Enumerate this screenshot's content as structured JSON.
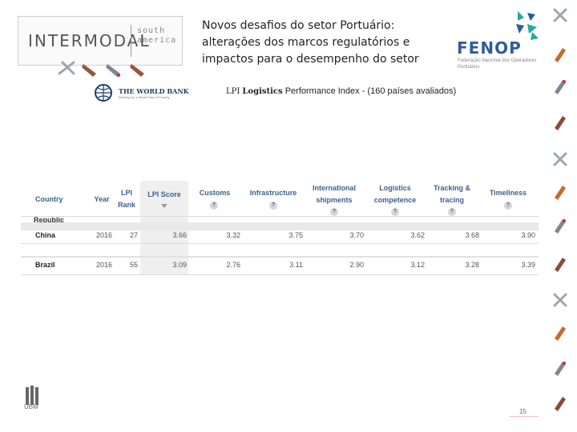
{
  "header": {
    "logo_main": "INTERMODAL",
    "logo_sub": "south america",
    "title_lines": [
      "Novos desafios do setor Portuário:",
      "alterações dos marcos regulatórios e",
      "impactos  para o desempenho do setor"
    ],
    "partner_logo": "FENOP",
    "partner_sub": "Federação Nacional dos Operadores Portuários",
    "bank_logo": "THE WORLD BANK",
    "bank_tagline": "Working for a World Free of Poverty"
  },
  "caption": {
    "lpi": "LPI",
    "logistics": "Logistics",
    "rest": "Performance Index - (160 países avaliados)"
  },
  "table": {
    "columns": [
      "Country",
      "Year",
      "LPI Rank",
      "LPI Score",
      "Customs",
      "Infrastructure",
      "International shipments",
      "Logistics competence",
      "Tracking & tracing",
      "Timeliness"
    ],
    "help_symbol": "?",
    "partial_row_label": "Republic",
    "rows": [
      [
        "China",
        "2016",
        "27",
        "3.66",
        "3.32",
        "3.75",
        "3.70",
        "3.62",
        "3.68",
        "3.90"
      ],
      [
        "Brazil",
        "2016",
        "55",
        "3.09",
        "2.76",
        "3.11",
        "2.90",
        "3.12",
        "3.28",
        "3.39"
      ]
    ]
  },
  "footer": {
    "org": "UBM",
    "page": "15"
  },
  "icons": [
    "ship-icon",
    "truck-icon",
    "plane-icon",
    "train-icon"
  ],
  "colors": {
    "header_text": "#3d5f8c",
    "fenop_blue": "#2f5d9b",
    "fenop_teal": "#2aa7a0",
    "highlight_column": "#efefef"
  }
}
